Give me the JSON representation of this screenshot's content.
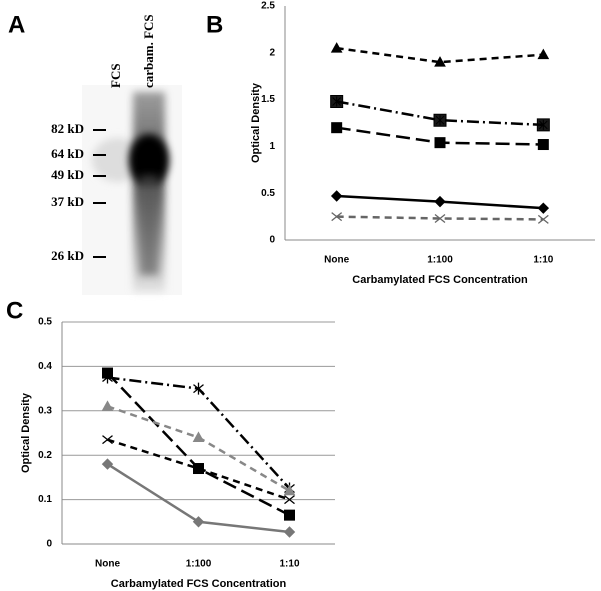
{
  "panel_labels": [
    "A",
    "B",
    "C"
  ],
  "gel": {
    "lanes": [
      "FCS",
      "carbam. FCS"
    ],
    "markers": [
      "82 kD",
      "64 kD",
      "49 kD",
      "37 kD",
      "26 kD"
    ]
  },
  "chart_data": [
    {
      "type": "line",
      "x_label": "Carbamylated FCS Concentration",
      "y_label": "Optical Density",
      "categories": [
        "None",
        "1:100",
        "1:10"
      ],
      "ylim": [
        0,
        2.5
      ],
      "yticks": [
        0,
        0.5,
        1,
        1.5,
        2,
        2.5
      ],
      "grid": false,
      "series": [
        {
          "color": "#000000",
          "marker": "triangle",
          "line_style": "dashed",
          "values": [
            2.05,
            1.9,
            1.98
          ]
        },
        {
          "color": "#000000",
          "marker": "square-asterisk",
          "line_style": "dash-dot",
          "values": [
            1.48,
            1.28,
            1.23
          ]
        },
        {
          "color": "#000000",
          "marker": "square",
          "line_style": "long-dash",
          "values": [
            1.2,
            1.04,
            1.02
          ]
        },
        {
          "color": "#000000",
          "marker": "diamond",
          "line_style": "solid",
          "values": [
            0.47,
            0.41,
            0.34
          ]
        },
        {
          "color": "#666666",
          "marker": "x",
          "line_style": "dashed",
          "values": [
            0.25,
            0.23,
            0.22
          ]
        }
      ]
    },
    {
      "type": "line",
      "x_label": "Carbamylated FCS Concentration",
      "y_label": "Optical Density",
      "categories": [
        "None",
        "1:100",
        "1:10"
      ],
      "ylim": [
        0,
        0.5
      ],
      "yticks": [
        0,
        0.1,
        0.2,
        0.3,
        0.4,
        0.5
      ],
      "grid": true,
      "series": [
        {
          "color": "#000000",
          "marker": "square",
          "line_style": "long-dash",
          "values": [
            0.385,
            0.17,
            0.065
          ]
        },
        {
          "color": "#000000",
          "marker": "asterisk",
          "line_style": "dash-dot",
          "values": [
            0.375,
            0.35,
            0.125
          ]
        },
        {
          "color": "#888888",
          "marker": "triangle",
          "line_style": "dashed",
          "values": [
            0.31,
            0.24,
            0.12
          ]
        },
        {
          "color": "#000000",
          "marker": "x",
          "line_style": "dashed",
          "values": [
            0.235,
            0.17,
            0.1
          ]
        },
        {
          "color": "#777777",
          "marker": "diamond",
          "line_style": "solid",
          "values": [
            0.18,
            0.05,
            0.027
          ]
        }
      ]
    }
  ]
}
